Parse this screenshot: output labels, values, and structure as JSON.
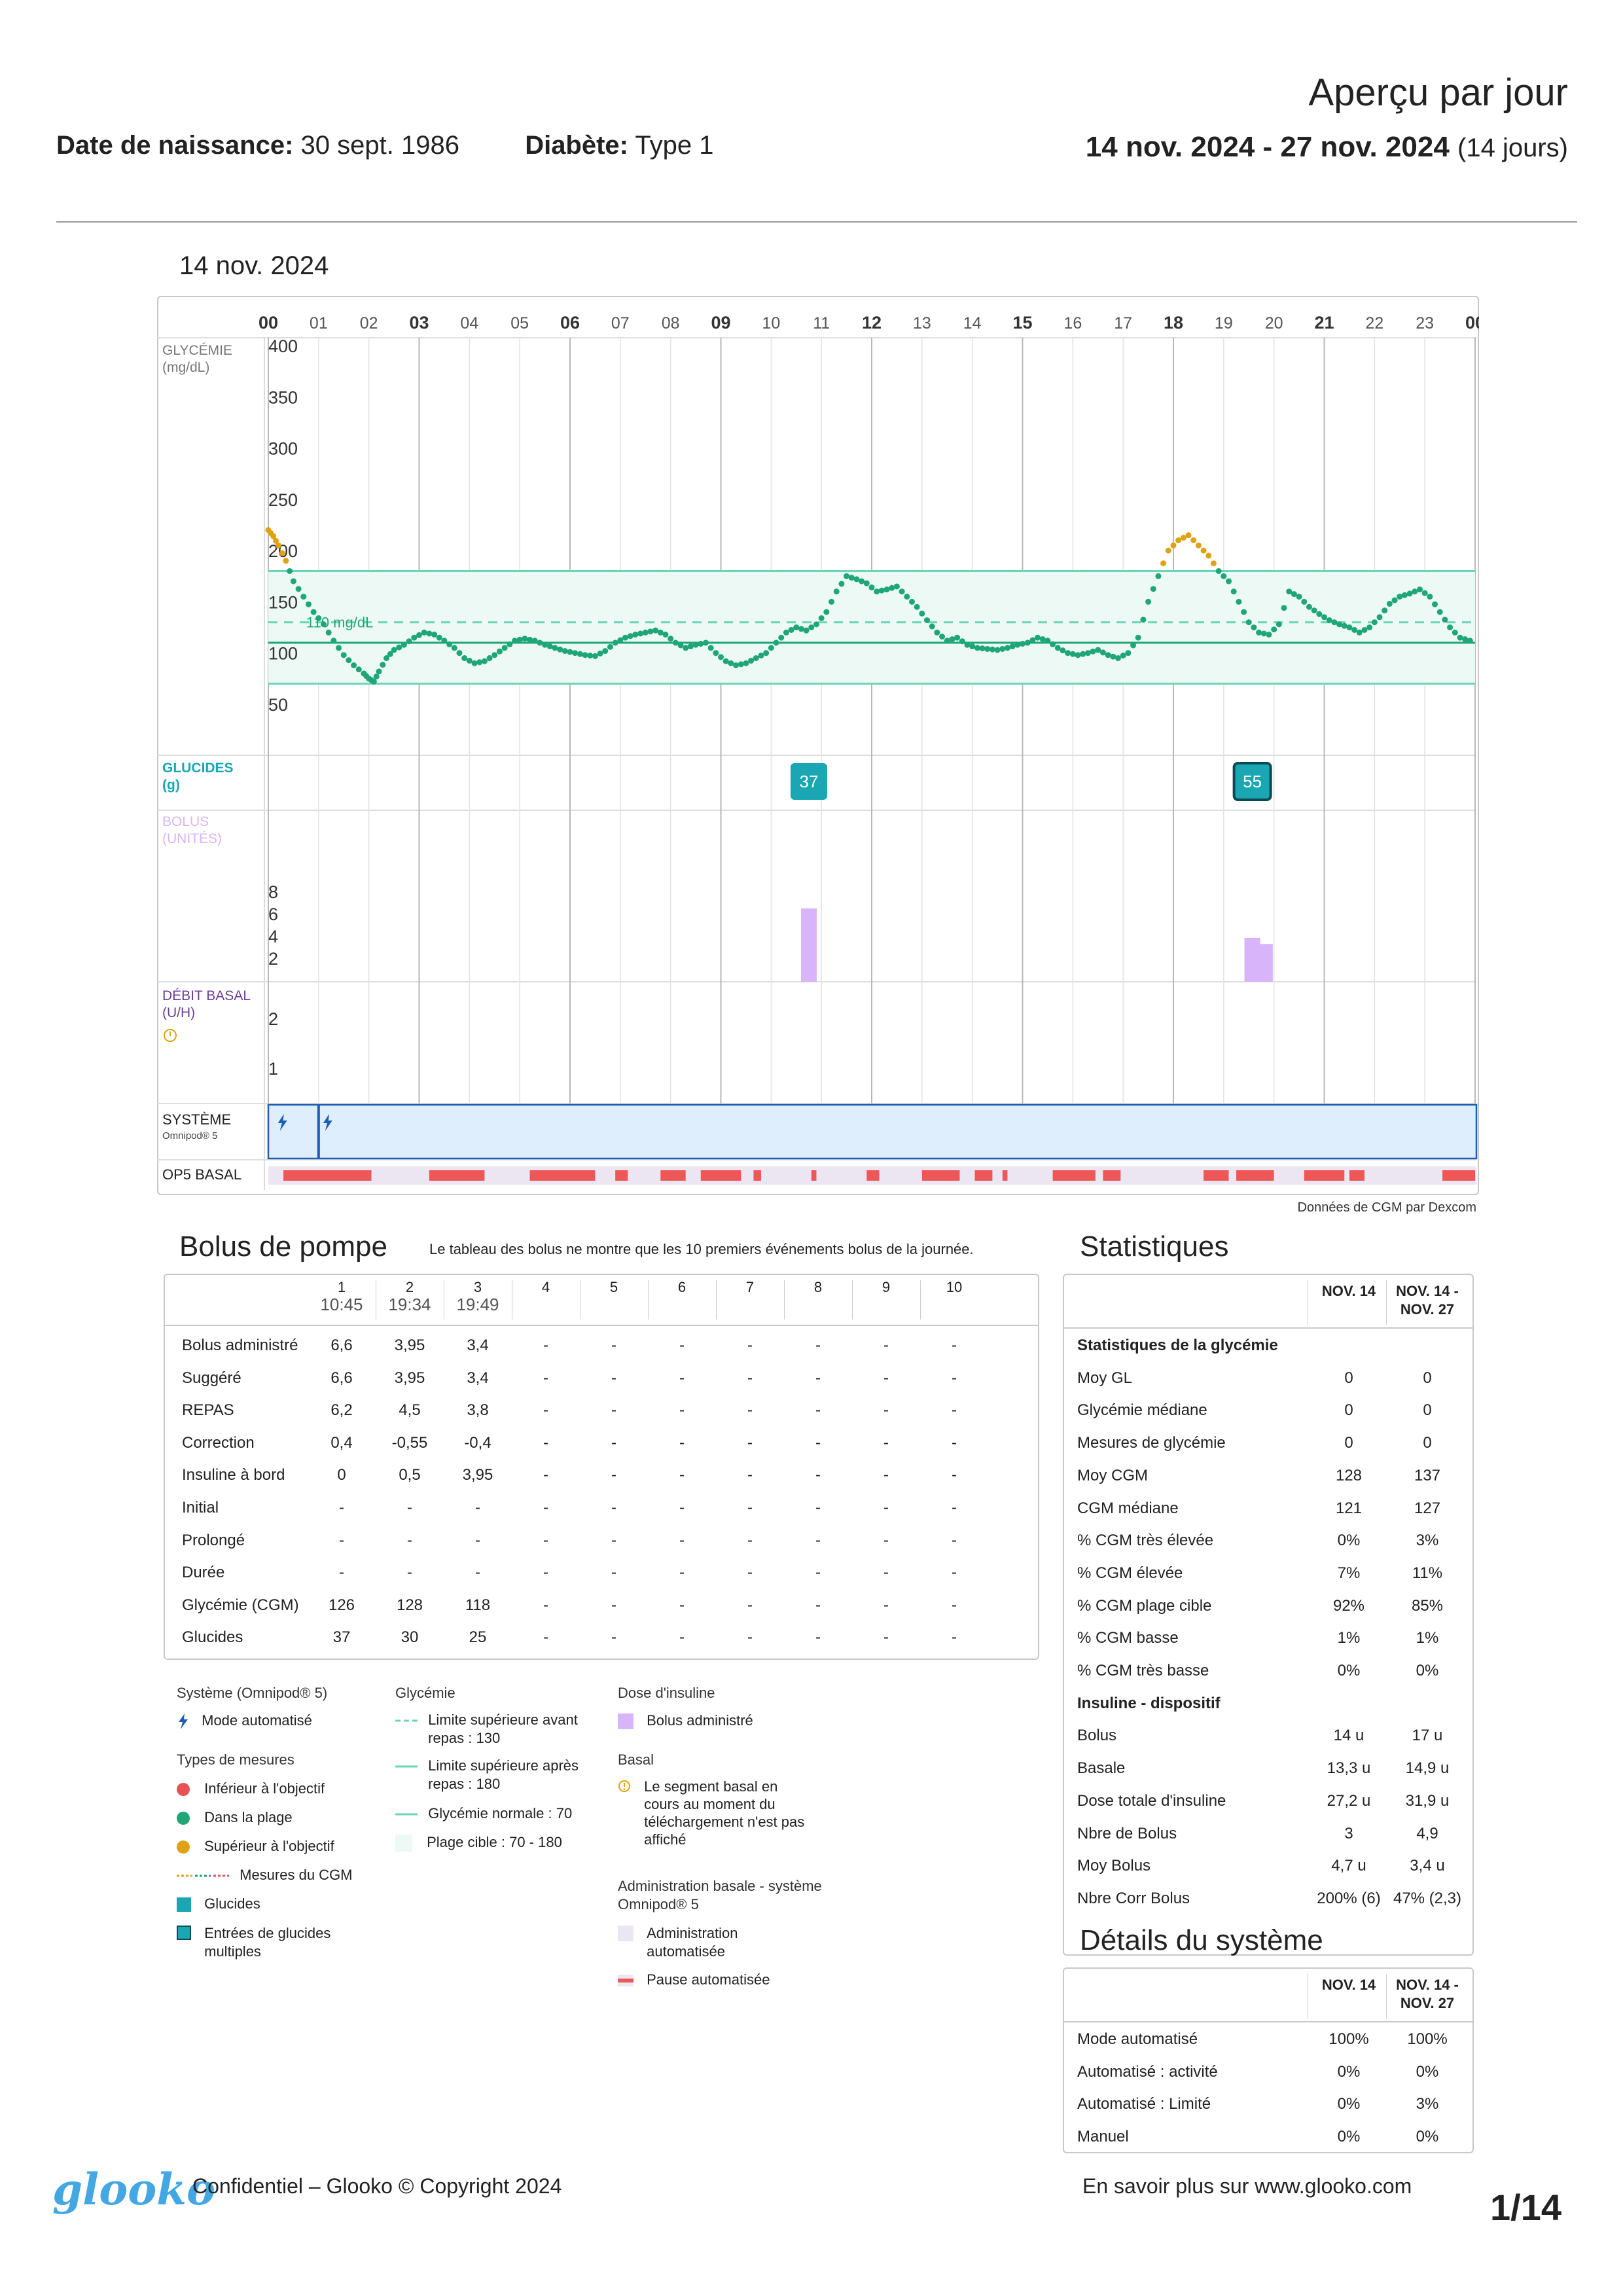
{
  "header": {
    "title": "Aperçu par jour",
    "dob_label": "Date de naissance:",
    "dob_value": "30 sept. 1986",
    "diabetes_label": "Diabète:",
    "diabetes_value": "Type 1",
    "range_bold": "14 nov. 2024 - 27 nov. 2024",
    "range_days": "(14 jours)"
  },
  "day": {
    "title": "14 nov. 2024",
    "cgm_source": "Données de CGM par Dexcom"
  },
  "chart_data": {
    "type": "scatter",
    "x_ticks": [
      "00",
      "01",
      "02",
      "03",
      "04",
      "05",
      "06",
      "07",
      "08",
      "09",
      "10",
      "11",
      "12",
      "13",
      "14",
      "15",
      "16",
      "17",
      "18",
      "19",
      "20",
      "21",
      "22",
      "23",
      "00"
    ],
    "y_ticks": [
      400,
      350,
      300,
      250,
      200,
      150,
      100,
      50
    ],
    "ylim": [
      0,
      400
    ],
    "target_range": [
      70,
      180
    ],
    "pre_meal_limit": 130,
    "normal_line": 110,
    "target_label": "110 mg/dL",
    "colors": {
      "in": "#1ea677",
      "high": "#e0a214",
      "low": "#e85252",
      "carbs": "#1aa6b3",
      "bolus": "#d8b4fb"
    },
    "glucose_points": [
      [
        0.0,
        220
      ],
      [
        0.1,
        214
      ],
      [
        0.2,
        205
      ],
      [
        0.35,
        190
      ],
      [
        0.5,
        170
      ],
      [
        0.7,
        155
      ],
      [
        0.9,
        140
      ],
      [
        1.1,
        128
      ],
      [
        1.3,
        112
      ],
      [
        1.5,
        98
      ],
      [
        1.7,
        88
      ],
      [
        1.9,
        80
      ],
      [
        2.0,
        75
      ],
      [
        2.1,
        72
      ],
      [
        2.2,
        82
      ],
      [
        2.35,
        95
      ],
      [
        2.5,
        103
      ],
      [
        2.7,
        108
      ],
      [
        2.9,
        115
      ],
      [
        3.1,
        120
      ],
      [
        3.3,
        118
      ],
      [
        3.5,
        112
      ],
      [
        3.7,
        105
      ],
      [
        3.9,
        95
      ],
      [
        4.1,
        90
      ],
      [
        4.3,
        92
      ],
      [
        4.5,
        98
      ],
      [
        4.7,
        105
      ],
      [
        4.9,
        112
      ],
      [
        5.1,
        114
      ],
      [
        5.3,
        112
      ],
      [
        5.5,
        108
      ],
      [
        5.7,
        105
      ],
      [
        5.9,
        102
      ],
      [
        6.1,
        100
      ],
      [
        6.3,
        98
      ],
      [
        6.5,
        97
      ],
      [
        6.7,
        102
      ],
      [
        6.9,
        110
      ],
      [
        7.1,
        115
      ],
      [
        7.3,
        118
      ],
      [
        7.5,
        120
      ],
      [
        7.7,
        122
      ],
      [
        7.9,
        118
      ],
      [
        8.1,
        110
      ],
      [
        8.3,
        105
      ],
      [
        8.5,
        108
      ],
      [
        8.7,
        110
      ],
      [
        8.9,
        100
      ],
      [
        9.1,
        92
      ],
      [
        9.3,
        88
      ],
      [
        9.5,
        90
      ],
      [
        9.7,
        95
      ],
      [
        9.9,
        100
      ],
      [
        10.1,
        110
      ],
      [
        10.3,
        120
      ],
      [
        10.5,
        125
      ],
      [
        10.7,
        122
      ],
      [
        10.9,
        128
      ],
      [
        11.1,
        140
      ],
      [
        11.3,
        160
      ],
      [
        11.5,
        175
      ],
      [
        11.7,
        172
      ],
      [
        11.9,
        168
      ],
      [
        12.1,
        160
      ],
      [
        12.3,
        162
      ],
      [
        12.5,
        165
      ],
      [
        12.7,
        155
      ],
      [
        12.9,
        145
      ],
      [
        13.1,
        132
      ],
      [
        13.3,
        120
      ],
      [
        13.5,
        112
      ],
      [
        13.7,
        115
      ],
      [
        13.9,
        108
      ],
      [
        14.1,
        105
      ],
      [
        14.3,
        104
      ],
      [
        14.5,
        103
      ],
      [
        14.7,
        105
      ],
      [
        14.9,
        108
      ],
      [
        15.1,
        110
      ],
      [
        15.3,
        115
      ],
      [
        15.5,
        112
      ],
      [
        15.7,
        105
      ],
      [
        15.9,
        100
      ],
      [
        16.1,
        98
      ],
      [
        16.3,
        100
      ],
      [
        16.5,
        103
      ],
      [
        16.7,
        98
      ],
      [
        16.9,
        95
      ],
      [
        17.1,
        100
      ],
      [
        17.3,
        115
      ],
      [
        17.5,
        150
      ],
      [
        17.7,
        175
      ],
      [
        17.9,
        200
      ],
      [
        18.1,
        210
      ],
      [
        18.3,
        215
      ],
      [
        18.5,
        205
      ],
      [
        18.7,
        195
      ],
      [
        18.9,
        180
      ],
      [
        19.1,
        170
      ],
      [
        19.3,
        150
      ],
      [
        19.5,
        130
      ],
      [
        19.7,
        120
      ],
      [
        19.9,
        118
      ],
      [
        20.1,
        128
      ],
      [
        20.3,
        160
      ],
      [
        20.5,
        155
      ],
      [
        20.7,
        145
      ],
      [
        20.9,
        138
      ],
      [
        21.1,
        132
      ],
      [
        21.3,
        128
      ],
      [
        21.5,
        125
      ],
      [
        21.7,
        120
      ],
      [
        21.9,
        125
      ],
      [
        22.1,
        135
      ],
      [
        22.3,
        148
      ],
      [
        22.5,
        155
      ],
      [
        22.7,
        158
      ],
      [
        22.9,
        162
      ],
      [
        23.1,
        155
      ],
      [
        23.3,
        140
      ],
      [
        23.5,
        125
      ],
      [
        23.7,
        115
      ],
      [
        23.9,
        112
      ]
    ],
    "carbs": [
      {
        "hour": 10.75,
        "value": "37"
      },
      {
        "hour": 19.57,
        "value": "55"
      }
    ],
    "bolus_ticks": [
      8,
      6,
      4,
      2
    ],
    "bolus_bars": [
      {
        "hour": 10.75,
        "units": 6.6
      },
      {
        "hour": 19.57,
        "units": 3.95
      },
      {
        "hour": 19.82,
        "units": 3.4
      }
    ],
    "basal_ticks": [
      2,
      1
    ],
    "system_auto_marks": [
      0.1,
      1.0
    ],
    "op5_pauses": [
      [
        0.3,
        2.05
      ],
      [
        3.2,
        4.3
      ],
      [
        5.2,
        6.5
      ],
      [
        6.9,
        7.15
      ],
      [
        7.8,
        8.3
      ],
      [
        8.6,
        9.4
      ],
      [
        9.65,
        9.8
      ],
      [
        10.8,
        10.9
      ],
      [
        11.9,
        12.15
      ],
      [
        13.0,
        13.75
      ],
      [
        14.05,
        14.4
      ],
      [
        14.6,
        14.7
      ],
      [
        15.6,
        16.45
      ],
      [
        16.6,
        16.95
      ],
      [
        18.6,
        19.1
      ],
      [
        19.25,
        20.0
      ],
      [
        20.6,
        21.4
      ],
      [
        21.5,
        21.8
      ],
      [
        23.35,
        24.0
      ]
    ]
  },
  "row_labels": {
    "glycemia": "GLYCÉMIE",
    "glycemia_unit": "(mg/dL)",
    "carbs": "GLUCIDES",
    "carbs_unit": "(g)",
    "bolus": "BOLUS",
    "bolus_unit": "(UNITÉS)",
    "basal": "DÉBIT BASAL",
    "basal_unit": "(U/H)",
    "system": "SYSTÈME",
    "system_sub": "Omnipod® 5",
    "op5": "OP5 BASAL"
  },
  "bolus_table": {
    "title": "Bolus de pompe",
    "note": "Le tableau des bolus ne montre que les 10 premiers événements bolus de la journée.",
    "columns": [
      {
        "num": "1",
        "time": "10:45"
      },
      {
        "num": "2",
        "time": "19:34"
      },
      {
        "num": "3",
        "time": "19:49"
      },
      {
        "num": "4",
        "time": ""
      },
      {
        "num": "5",
        "time": ""
      },
      {
        "num": "6",
        "time": ""
      },
      {
        "num": "7",
        "time": ""
      },
      {
        "num": "8",
        "time": ""
      },
      {
        "num": "9",
        "time": ""
      },
      {
        "num": "10",
        "time": ""
      }
    ],
    "rows": [
      {
        "label": "Bolus administré",
        "values": [
          "6,6",
          "3,95",
          "3,4",
          "-",
          "-",
          "-",
          "-",
          "-",
          "-",
          "-"
        ]
      },
      {
        "label": "Suggéré",
        "values": [
          "6,6",
          "3,95",
          "3,4",
          "-",
          "-",
          "-",
          "-",
          "-",
          "-",
          "-"
        ]
      },
      {
        "label": "REPAS",
        "values": [
          "6,2",
          "4,5",
          "3,8",
          "-",
          "-",
          "-",
          "-",
          "-",
          "-",
          "-"
        ]
      },
      {
        "label": "Correction",
        "values": [
          "0,4",
          "-0,55",
          "-0,4",
          "-",
          "-",
          "-",
          "-",
          "-",
          "-",
          "-"
        ]
      },
      {
        "label": "Insuline à bord",
        "values": [
          "0",
          "0,5",
          "3,95",
          "-",
          "-",
          "-",
          "-",
          "-",
          "-",
          "-"
        ]
      },
      {
        "label": "Initial",
        "values": [
          "-",
          "-",
          "-",
          "-",
          "-",
          "-",
          "-",
          "-",
          "-",
          "-"
        ]
      },
      {
        "label": "Prolongé",
        "values": [
          "-",
          "-",
          "-",
          "-",
          "-",
          "-",
          "-",
          "-",
          "-",
          "-"
        ]
      },
      {
        "label": "Durée",
        "values": [
          "-",
          "-",
          "-",
          "-",
          "-",
          "-",
          "-",
          "-",
          "-",
          "-"
        ]
      },
      {
        "label": "Glycémie (CGM)",
        "values": [
          "126",
          "128",
          "118",
          "-",
          "-",
          "-",
          "-",
          "-",
          "-",
          "-"
        ]
      },
      {
        "label": "Glucides",
        "values": [
          "37",
          "30",
          "25",
          "-",
          "-",
          "-",
          "-",
          "-",
          "-",
          "-"
        ]
      }
    ]
  },
  "stats": {
    "title": "Statistiques",
    "col1": "NOV. 14",
    "col2a": "NOV. 14 -",
    "col2b": "NOV. 27",
    "rows": [
      {
        "label": "Statistiques de la glycémie",
        "v1": "",
        "v2": "",
        "bold": true
      },
      {
        "label": "Moy GL",
        "v1": "0",
        "v2": "0"
      },
      {
        "label": "Glycémie médiane",
        "v1": "0",
        "v2": "0"
      },
      {
        "label": "Mesures de glycémie",
        "v1": "0",
        "v2": "0"
      },
      {
        "label": "Moy CGM",
        "v1": "128",
        "v2": "137"
      },
      {
        "label": "CGM médiane",
        "v1": "121",
        "v2": "127"
      },
      {
        "label": "% CGM très élevée",
        "v1": "0%",
        "v2": "3%"
      },
      {
        "label": "% CGM élevée",
        "v1": "7%",
        "v2": "11%"
      },
      {
        "label": "% CGM plage cible",
        "v1": "92%",
        "v2": "85%"
      },
      {
        "label": "% CGM basse",
        "v1": "1%",
        "v2": "1%"
      },
      {
        "label": "% CGM très basse",
        "v1": "0%",
        "v2": "0%"
      },
      {
        "label": "Insuline - dispositif",
        "v1": "",
        "v2": "",
        "bold": true
      },
      {
        "label": "Bolus",
        "v1": "14 u",
        "v2": "17 u"
      },
      {
        "label": "Basale",
        "v1": "13,3 u",
        "v2": "14,9 u"
      },
      {
        "label": "Dose totale d'insuline",
        "v1": "27,2 u",
        "v2": "31,9 u"
      },
      {
        "label": "Nbre de Bolus",
        "v1": "3",
        "v2": "4,9"
      },
      {
        "label": "Moy Bolus",
        "v1": "4,7 u",
        "v2": "3,4 u"
      },
      {
        "label": "Nbre Corr Bolus",
        "v1": "200% (6)",
        "v2": "47% (2,3)"
      }
    ]
  },
  "system_details": {
    "title": "Détails du système",
    "col1": "NOV. 14",
    "col2a": "NOV. 14 -",
    "col2b": "NOV. 27",
    "rows": [
      {
        "label": "Mode automatisé",
        "v1": "100%",
        "v2": "100%"
      },
      {
        "label": "Automatisé : activité",
        "v1": "0%",
        "v2": "0%"
      },
      {
        "label": "Automatisé : Limité",
        "v1": "0%",
        "v2": "3%"
      },
      {
        "label": "Manuel",
        "v1": "0%",
        "v2": "0%"
      }
    ]
  },
  "legend": {
    "system_head": "Système (Omnipod® 5)",
    "auto_mode": "Mode automatisé",
    "types_head": "Types de mesures",
    "below": "Inférieur à l'objectif",
    "in_range": "Dans la plage",
    "above": "Supérieur à l'objectif",
    "cgm": "Mesures du CGM",
    "carbs": "Glucides",
    "multi_carbs_1": "Entrées de glucides",
    "multi_carbs_2": "multiples",
    "glyc_head": "Glycémie",
    "pre_meal_1": "Limite supérieure avant",
    "pre_meal_2": "repas : 130",
    "post_meal_1": "Limite supérieure après",
    "post_meal_2": "repas : 180",
    "normal": "Glycémie normale : 70",
    "target": "Plage cible : 70 - 180",
    "dose_head": "Dose d'insuline",
    "bolus_admin": "Bolus administré",
    "basal_head": "Basal",
    "basal_seg_1": "Le segment basal en",
    "basal_seg_2": "cours au moment du",
    "basal_seg_3": "téléchargement n'est pas",
    "basal_seg_4": "affiché",
    "admin_head_1": "Administration basale - système",
    "admin_head_2": "Omnipod® 5",
    "auto_admin_1": "Administration",
    "auto_admin_2": "automatisée",
    "auto_pause": "Pause automatisée"
  },
  "footer": {
    "brand": "glooko",
    "confidential": "Confidentiel – Glooko © Copyright 2024",
    "link": "En savoir plus sur www.glooko.com",
    "page": "1/14"
  }
}
